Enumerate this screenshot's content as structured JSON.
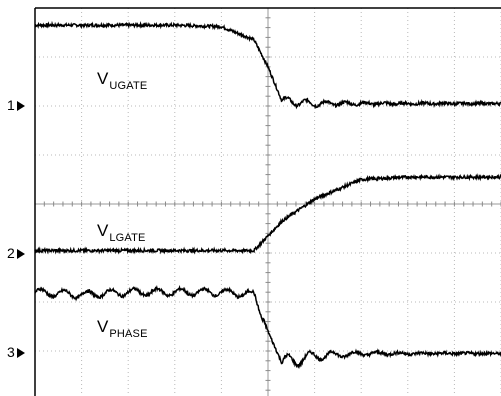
{
  "chart_data": {
    "type": "line",
    "title": "",
    "xlabel": "",
    "ylabel": "",
    "grid": true,
    "x_divisions": 10,
    "y_divisions": 8,
    "x": [
      0,
      1,
      2,
      3,
      4,
      4.7,
      5,
      5.3,
      6,
      7,
      8,
      9,
      10
    ],
    "series": [
      {
        "name": "UGATE",
        "channel": "1",
        "values": [
          7.65,
          7.65,
          7.65,
          7.65,
          7.62,
          7.35,
          6.8,
          6.1,
          6.05,
          6.05,
          6.05,
          6.05,
          6.05
        ]
      },
      {
        "name": "LGATE",
        "channel": "2",
        "values": [
          3.05,
          3.05,
          3.05,
          3.05,
          3.05,
          3.05,
          3.35,
          3.65,
          4.1,
          4.5,
          4.55,
          4.55,
          4.55
        ]
      },
      {
        "name": "PHASE",
        "channel": "3",
        "values": [
          2.2,
          2.15,
          2.2,
          2.2,
          2.2,
          2.15,
          1.4,
          0.75,
          0.9,
          0.95,
          0.95,
          0.95,
          0.95
        ]
      }
    ]
  },
  "labels": {
    "ugate_main": "V",
    "ugate_sub": "UGATE",
    "lgate_main": "V",
    "lgate_sub": "LGATE",
    "phase_main": "V",
    "phase_sub": "PHASE"
  },
  "markers": {
    "ch1": "1",
    "ch2": "2",
    "ch3": "3"
  },
  "colors": {
    "trace": "#000000",
    "grid": "#b8b8b8",
    "axis": "#000000",
    "background": "#ffffff"
  }
}
